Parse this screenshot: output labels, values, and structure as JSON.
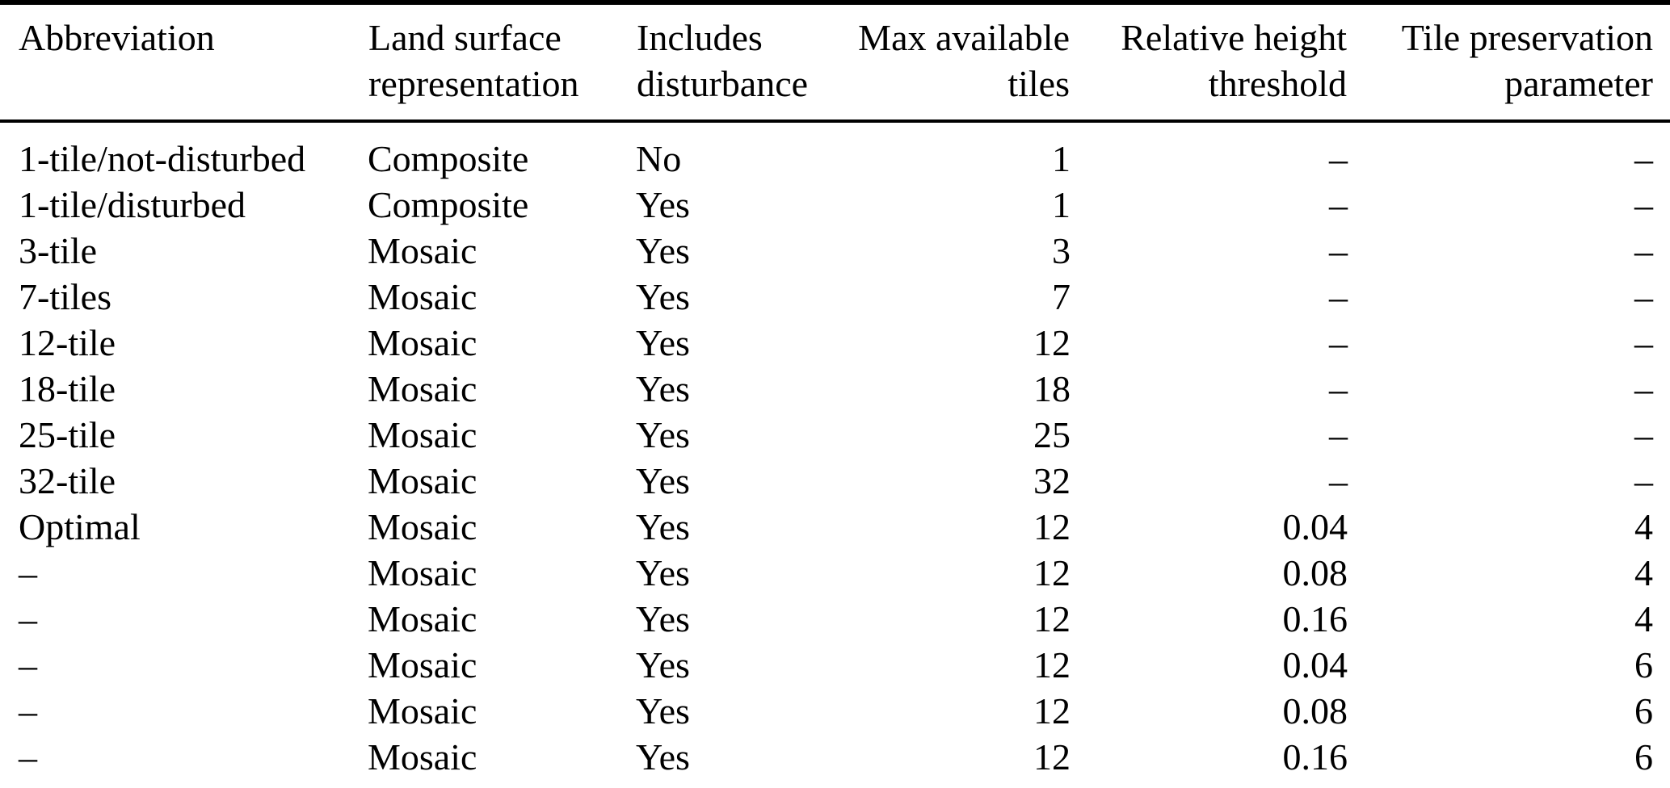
{
  "page": {
    "background": "#ffffff",
    "text_color": "#000000",
    "rule_color": "#000000"
  },
  "chart_data": {
    "type": "table",
    "layout": {
      "grid": "horizontal rules only (top, under header, bottom)",
      "header_lines": 2
    },
    "columns": [
      {
        "key": "abbreviation",
        "line1": "Abbreviation",
        "line2": "",
        "align": "left"
      },
      {
        "key": "land-surface-representation",
        "line1": "Land surface",
        "line2": "representation",
        "align": "left"
      },
      {
        "key": "includes-disturbance",
        "line1": "Includes",
        "line2": "disturbance",
        "align": "left"
      },
      {
        "key": "max-available-tiles",
        "line1": "Max available",
        "line2": "tiles",
        "align": "right"
      },
      {
        "key": "relative-height-threshold",
        "line1": "Relative height",
        "line2": "threshold",
        "align": "right"
      },
      {
        "key": "tile-preservation-parameter",
        "line1": "Tile preservation",
        "line2": "parameter",
        "align": "right"
      }
    ],
    "rows": [
      [
        "1-tile/not-disturbed",
        "Composite",
        "No",
        "1",
        "–",
        "–"
      ],
      [
        "1-tile/disturbed",
        "Composite",
        "Yes",
        "1",
        "–",
        "–"
      ],
      [
        "3-tile",
        "Mosaic",
        "Yes",
        "3",
        "–",
        "–"
      ],
      [
        "7-tiles",
        "Mosaic",
        "Yes",
        "7",
        "–",
        "–"
      ],
      [
        "12-tile",
        "Mosaic",
        "Yes",
        "12",
        "–",
        "–"
      ],
      [
        "18-tile",
        "Mosaic",
        "Yes",
        "18",
        "–",
        "–"
      ],
      [
        "25-tile",
        "Mosaic",
        "Yes",
        "25",
        "–",
        "–"
      ],
      [
        "32-tile",
        "Mosaic",
        "Yes",
        "32",
        "–",
        "–"
      ],
      [
        "Optimal",
        "Mosaic",
        "Yes",
        "12",
        "0.04",
        "4"
      ],
      [
        "–",
        "Mosaic",
        "Yes",
        "12",
        "0.08",
        "4"
      ],
      [
        "–",
        "Mosaic",
        "Yes",
        "12",
        "0.16",
        "4"
      ],
      [
        "–",
        "Mosaic",
        "Yes",
        "12",
        "0.04",
        "6"
      ],
      [
        "–",
        "Mosaic",
        "Yes",
        "12",
        "0.08",
        "6"
      ],
      [
        "–",
        "Mosaic",
        "Yes",
        "12",
        "0.16",
        "6"
      ]
    ]
  }
}
